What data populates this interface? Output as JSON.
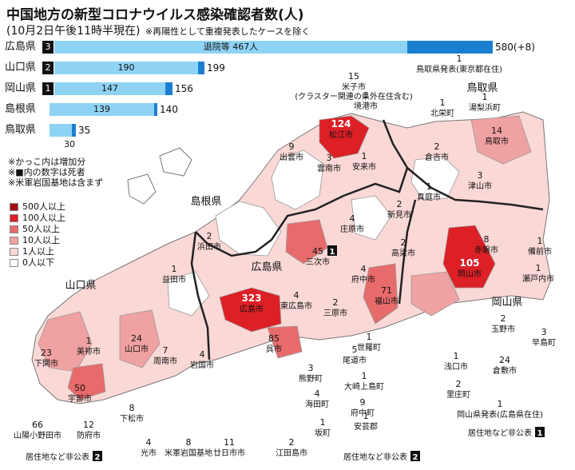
{
  "title": "中国地方の新型コロナウイルス感染確認者数(人)",
  "subtitle": "(10月2日午後11時半現在)",
  "subnote": "※再陽性として重複発表したケースを除く",
  "colors": {
    "bar_light": "#8fd3f4",
    "bar_dark": "#1a7fd1",
    "c500": "#a40e14",
    "c100": "#dd1f26",
    "c50": "#e86b6b",
    "c10": "#f0a1a1",
    "c1": "#f9d8d6",
    "c0": "#ffffff"
  },
  "bars": [
    {
      "pref": "広島県",
      "deaths": "3",
      "total": 580,
      "recovered": 467,
      "label": "580(+8)",
      "inner": "退院等 467人"
    },
    {
      "pref": "山口県",
      "deaths": "2",
      "total": 199,
      "recovered": 190,
      "label": "199",
      "inner": "190"
    },
    {
      "pref": "岡山県",
      "deaths": "1",
      "total": 156,
      "recovered": 147,
      "label": "156",
      "inner": "147"
    },
    {
      "pref": "島根県",
      "deaths": "",
      "total": 140,
      "recovered": 139,
      "label": "140",
      "inner": "139"
    },
    {
      "pref": "鳥取県",
      "deaths": "",
      "total": 35,
      "recovered": 30,
      "label": "35",
      "inner": "30"
    }
  ],
  "notes": [
    "※かっこ内は増加分",
    "※■内の数字は死者",
    "※米軍岩国基地は含まず"
  ],
  "legend": [
    {
      "label": "500人以上",
      "color": "#a40e14"
    },
    {
      "label": "100人以上",
      "color": "#dd1f26"
    },
    {
      "label": "50人以上",
      "color": "#e86b6b"
    },
    {
      "label": "10人以上",
      "color": "#f0a1a1"
    },
    {
      "label": "1人以上",
      "color": "#f9d8d6"
    },
    {
      "label": "0人以下",
      "color": "#ffffff"
    }
  ],
  "prefecture_names": [
    "鳥取県",
    "島根県",
    "広島県",
    "山口県",
    "岡山県"
  ],
  "places": [
    {
      "name": "米子市",
      "num": "15",
      "note": "(クラスター関連の県外在住含む)"
    },
    {
      "name": "鳥取県発表(東京都在住)",
      "num": "1"
    },
    {
      "name": "境港市",
      "num": "1"
    },
    {
      "name": "北栄町",
      "num": "1"
    },
    {
      "name": "湯梨浜町",
      "num": "1"
    },
    {
      "name": "鳥取市",
      "num": "14"
    },
    {
      "name": "松江市",
      "num": "124"
    },
    {
      "name": "出雲市",
      "num": "9"
    },
    {
      "name": "雲南市",
      "num": "3"
    },
    {
      "name": "安来市",
      "num": "1"
    },
    {
      "name": "倉吉市",
      "num": "2"
    },
    {
      "name": "津山市",
      "num": "3"
    },
    {
      "name": "真庭市",
      "num": "1"
    },
    {
      "name": "新見市",
      "num": "2"
    },
    {
      "name": "庄原市",
      "num": "4"
    },
    {
      "name": "浜田市",
      "num": "2"
    },
    {
      "name": "三次市",
      "num": "45",
      "deaths": "1"
    },
    {
      "name": "高梁市",
      "num": "2"
    },
    {
      "name": "赤磐市",
      "num": "8"
    },
    {
      "name": "備前市",
      "num": "1"
    },
    {
      "name": "岡山市",
      "num": "105"
    },
    {
      "name": "瀬戸内市",
      "num": "1"
    },
    {
      "name": "益田市",
      "num": "1"
    },
    {
      "name": "府中市",
      "num": "4"
    },
    {
      "name": "福山市",
      "num": "71"
    },
    {
      "name": "広島市",
      "num": "323"
    },
    {
      "name": "東広島市",
      "num": "4"
    },
    {
      "name": "三原市",
      "num": "2"
    },
    {
      "name": "美祢市",
      "num": "1"
    },
    {
      "name": "山口市",
      "num": "24"
    },
    {
      "name": "周南市",
      "num": "7"
    },
    {
      "name": "岩国市",
      "num": "4"
    },
    {
      "name": "呉市",
      "num": "85"
    },
    {
      "name": "玉野市",
      "num": "2"
    },
    {
      "name": "早島町",
      "num": "3"
    },
    {
      "name": "下関市",
      "num": "23"
    },
    {
      "name": "世羅町",
      "num": "1"
    },
    {
      "name": "尾道市",
      "num": "5"
    },
    {
      "name": "熊野町",
      "num": "3"
    },
    {
      "name": "大崎上島町",
      "num": "1"
    },
    {
      "name": "浅口市",
      "num": "1"
    },
    {
      "name": "倉敷市",
      "num": "24"
    },
    {
      "name": "宇部市",
      "num": "50"
    },
    {
      "name": "下松市",
      "num": "8"
    },
    {
      "name": "海田町",
      "num": "4"
    },
    {
      "name": "府中町",
      "num": "9"
    },
    {
      "name": "里庄町",
      "num": "2"
    },
    {
      "name": "山陽小野田市",
      "num": "66"
    },
    {
      "name": "防府市",
      "num": "12"
    },
    {
      "name": "米軍岩国基地",
      "num": "8"
    },
    {
      "name": "坂町",
      "num": "1"
    },
    {
      "name": "安芸郡",
      "num": "1"
    },
    {
      "name": "岡山県発表(広島県在住)",
      "num": "1"
    },
    {
      "name": "光市",
      "num": "4"
    },
    {
      "name": "廿日市市",
      "num": "11"
    },
    {
      "name": "江田島市",
      "num": "2"
    }
  ],
  "undisclosed": [
    {
      "label": "居住地など非公表",
      "num": "2"
    },
    {
      "label": "居住地など非公表",
      "num": "2"
    },
    {
      "label": "居住地など非公表",
      "num": "1"
    }
  ]
}
